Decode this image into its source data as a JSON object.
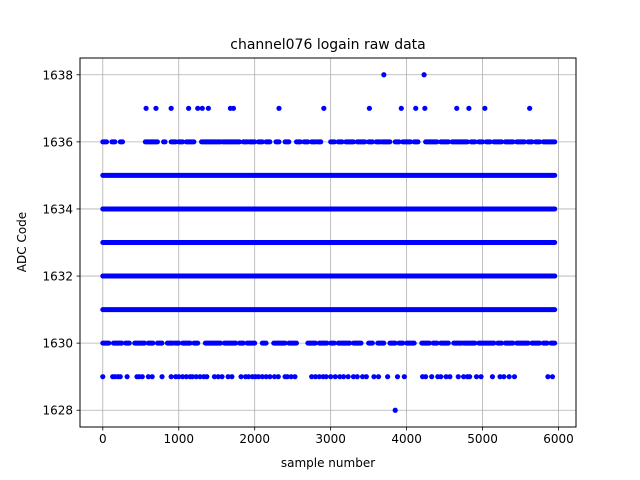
{
  "chart_data": {
    "type": "scatter",
    "title": "channel076 logain raw data",
    "xlabel": "sample number",
    "ylabel": "ADC Code",
    "xlim": [
      -300,
      6230
    ],
    "ylim": [
      1627.5,
      1638.5
    ],
    "xticks": [
      0,
      1000,
      2000,
      3000,
      4000,
      5000,
      6000
    ],
    "yticks": [
      1628,
      1630,
      1632,
      1634,
      1636,
      1638
    ],
    "grid": true,
    "marker_color": "#0000ff",
    "sample_count": 5950,
    "levels": [
      {
        "y": 1628,
        "x": [
          3850
        ]
      },
      {
        "y": 1629,
        "x": [
          0,
          130,
          160,
          200,
          230,
          320,
          450,
          480,
          520,
          600,
          650,
          780,
          900,
          960,
          1000,
          1050,
          1100,
          1150,
          1180,
          1230,
          1280,
          1330,
          1370,
          1470,
          1520,
          1570,
          1650,
          1700,
          1820,
          1880,
          1920,
          1970,
          2010,
          2050,
          2100,
          2150,
          2200,
          2260,
          2310,
          2400,
          2430,
          2480,
          2530,
          2750,
          2800,
          2850,
          2900,
          2940,
          3000,
          3060,
          3120,
          3170,
          3230,
          3300,
          3350,
          3420,
          3470,
          3570,
          3630,
          3750,
          3880,
          3970,
          4210,
          4250,
          4330,
          4410,
          4450,
          4520,
          4570,
          4680,
          4750,
          4800,
          4830,
          4920,
          4980,
          5130,
          5230,
          5280,
          5350,
          5420,
          5860,
          5920
        ]
      },
      {
        "y": 1630,
        "x": [
          [
            0,
            80
          ],
          [
            140,
            250
          ],
          [
            300,
            350
          ],
          [
            420,
            550
          ],
          [
            600,
            660
          ],
          [
            720,
            780
          ],
          [
            850,
            920
          ],
          [
            950,
            1000
          ],
          [
            1050,
            1150
          ],
          [
            1200,
            1250
          ],
          [
            1350,
            1550
          ],
          [
            1600,
            1750
          ],
          [
            1800,
            1850
          ],
          [
            1900,
            2000
          ],
          [
            2100,
            2150
          ],
          [
            2250,
            2400
          ],
          [
            2450,
            2550
          ],
          [
            2700,
            2800
          ],
          [
            2850,
            2950
          ],
          [
            3000,
            3050
          ],
          [
            3100,
            3250
          ],
          [
            3300,
            3400
          ],
          [
            3500,
            3550
          ],
          [
            3620,
            3700
          ],
          [
            3780,
            3850
          ],
          [
            3900,
            3950
          ],
          [
            4000,
            4100
          ],
          [
            4200,
            4300
          ],
          [
            4350,
            4400
          ],
          [
            4450,
            4550
          ],
          [
            4620,
            4720
          ],
          [
            4750,
            4900
          ],
          [
            4950,
            5150
          ],
          [
            5200,
            5250
          ],
          [
            5300,
            5400
          ],
          [
            5450,
            5600
          ],
          [
            5650,
            5750
          ],
          [
            5800,
            5850
          ],
          [
            5900,
            5950
          ]
        ]
      },
      {
        "y": 1631,
        "x": [
          [
            0,
            5950
          ]
        ]
      },
      {
        "y": 1632,
        "x": [
          [
            0,
            5950
          ]
        ]
      },
      {
        "y": 1633,
        "x": [
          [
            0,
            5950
          ]
        ]
      },
      {
        "y": 1634,
        "x": [
          [
            0,
            5950
          ]
        ]
      },
      {
        "y": 1635,
        "x": [
          [
            0,
            5950
          ]
        ]
      },
      {
        "y": 1636,
        "x": [
          [
            0,
            50
          ],
          [
            120,
            160
          ],
          [
            230,
            260
          ],
          [
            560,
            720
          ],
          [
            800,
            820
          ],
          [
            900,
            960
          ],
          [
            1000,
            1050
          ],
          [
            1100,
            1200
          ],
          [
            1300,
            1550
          ],
          [
            1580,
            1800
          ],
          [
            1850,
            1900
          ],
          [
            1930,
            2000
          ],
          [
            2050,
            2100
          ],
          [
            2150,
            2200
          ],
          [
            2280,
            2320
          ],
          [
            2400,
            2450
          ],
          [
            2550,
            2600
          ],
          [
            2650,
            2700
          ],
          [
            2750,
            2800
          ],
          [
            2830,
            2870
          ],
          [
            3000,
            3050
          ],
          [
            3100,
            3150
          ],
          [
            3200,
            3300
          ],
          [
            3350,
            3450
          ],
          [
            3500,
            3550
          ],
          [
            3600,
            3650
          ],
          [
            3680,
            3780
          ],
          [
            3850,
            3900
          ],
          [
            3950,
            4050
          ],
          [
            4100,
            4150
          ],
          [
            4250,
            4400
          ],
          [
            4450,
            4550
          ],
          [
            4600,
            4800
          ],
          [
            4850,
            4900
          ],
          [
            4950,
            5000
          ],
          [
            5050,
            5100
          ],
          [
            5150,
            5250
          ],
          [
            5300,
            5400
          ],
          [
            5450,
            5550
          ],
          [
            5600,
            5650
          ],
          [
            5700,
            5750
          ],
          [
            5800,
            5950
          ]
        ]
      },
      {
        "y": 1637,
        "x": [
          570,
          700,
          900,
          1130,
          1250,
          1310,
          1390,
          1680,
          1720,
          2320,
          2910,
          3510,
          3930,
          4120,
          4240,
          4660,
          4820,
          5030,
          5620
        ]
      },
      {
        "y": 1638,
        "x": [
          3700,
          4230
        ]
      }
    ]
  }
}
